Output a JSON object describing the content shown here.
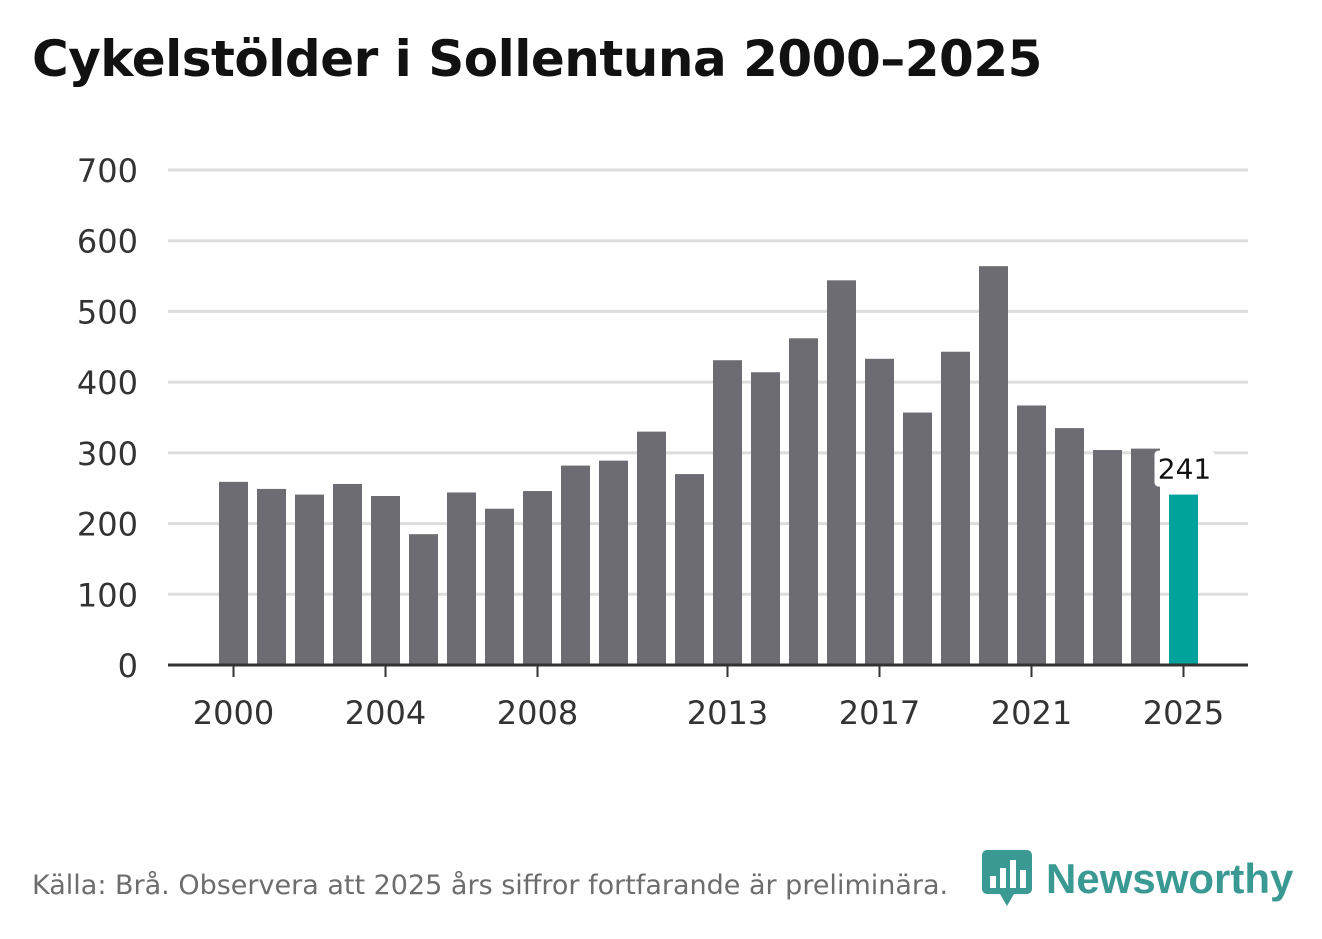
{
  "title": "Cykelstölder i Sollentuna 2000–2025",
  "source": "Källa: Brå. Observera att 2025 års siffror fortfarande är preliminära.",
  "brand": {
    "name": "Newsworthy",
    "icon": "newsworthy-logo-icon",
    "color": "#3a9a93"
  },
  "colors": {
    "bar": "#6d6c72",
    "highlight": "#00a39b",
    "grid": "#dddddd",
    "axis": "#333333"
  },
  "chart_data": {
    "type": "bar",
    "title": "Cykelstölder i Sollentuna 2000–2025",
    "xlabel": "",
    "ylabel": "",
    "categories": [
      "2000",
      "2001",
      "2002",
      "2003",
      "2004",
      "2005",
      "2006",
      "2007",
      "2008",
      "2009",
      "2010",
      "2011",
      "2012",
      "2013",
      "2014",
      "2015",
      "2016",
      "2017",
      "2018",
      "2019",
      "2020",
      "2021",
      "2022",
      "2023",
      "2024",
      "2025"
    ],
    "values": [
      259,
      249,
      241,
      256,
      239,
      185,
      244,
      221,
      246,
      282,
      289,
      330,
      270,
      431,
      414,
      462,
      544,
      433,
      357,
      443,
      564,
      367,
      335,
      304,
      306,
      241
    ],
    "highlight_category": "2025",
    "data_labels": [
      {
        "category": "2025",
        "text": "241"
      }
    ],
    "x_tick_labels": [
      "2000",
      "2004",
      "2008",
      "2013",
      "2017",
      "2021",
      "2025"
    ],
    "y_ticks": [
      0,
      100,
      200,
      300,
      400,
      500,
      600,
      700
    ],
    "ylim": [
      0,
      700
    ],
    "grid": true,
    "legend": "none"
  }
}
